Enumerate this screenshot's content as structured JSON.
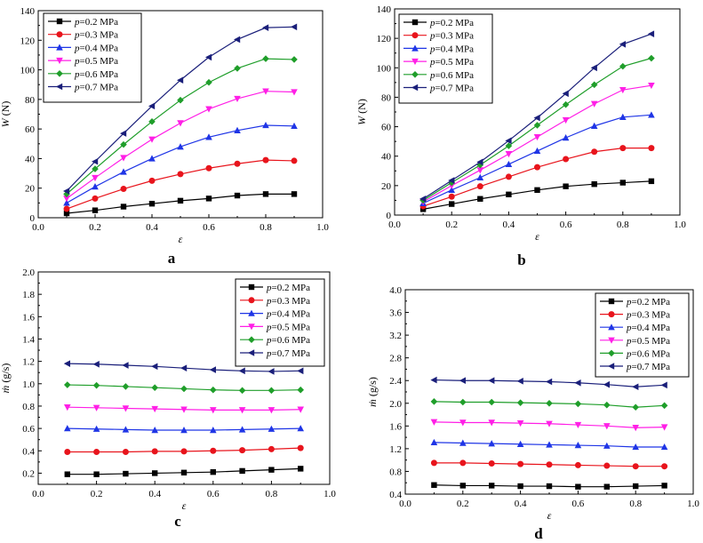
{
  "panels": [
    {
      "label": "a",
      "chart_data": {
        "type": "line",
        "xlabel": "ε",
        "ylabel": "W (N)",
        "ylabel_italic": "W",
        "ylabel_unit": " (N)",
        "xlim": [
          0.0,
          1.0
        ],
        "ylim": [
          0,
          140
        ],
        "x_ticks": [
          "0.0",
          "0.2",
          "0.4",
          "0.6",
          "0.8",
          "1.0"
        ],
        "y_ticks": [
          "0",
          "20",
          "40",
          "60",
          "80",
          "100",
          "120",
          "140"
        ],
        "grid": false,
        "legend_position": "top-left",
        "x": [
          0.1,
          0.2,
          0.3,
          0.4,
          0.5,
          0.6,
          0.7,
          0.8,
          0.9
        ],
        "series": [
          {
            "name": "p=0.2 MPa",
            "legend_symbol": "p",
            "legend_rest": "=0.2 MPa",
            "color": "#000000",
            "marker": "square",
            "values": [
              3,
              5,
              7.5,
              9.5,
              11.5,
              13,
              15,
              16,
              16
            ]
          },
          {
            "name": "p=0.3 MPa",
            "legend_symbol": "p",
            "legend_rest": "=0.3 MPa",
            "color": "#e8141c",
            "marker": "circle",
            "values": [
              6,
              13,
              19.5,
              25,
              29.5,
              33.5,
              36.5,
              39,
              38.5
            ]
          },
          {
            "name": "p=0.4 MPa",
            "legend_symbol": "p",
            "legend_rest": "=0.4 MPa",
            "color": "#1f35e6",
            "marker": "triangle-up",
            "values": [
              10,
              21,
              31,
              40,
              48,
              54.5,
              59,
              62.5,
              62
            ]
          },
          {
            "name": "p=0.5 MPa",
            "legend_symbol": "p",
            "legend_rest": "=0.5 MPa",
            "color": "#ff1fe6",
            "marker": "triangle-down",
            "values": [
              13,
              27,
              40.5,
              53,
              64,
              73.5,
              80.5,
              85.5,
              85
            ]
          },
          {
            "name": "p=0.6 MPa",
            "legend_symbol": "p",
            "legend_rest": "=0.6 MPa",
            "color": "#1f9e2a",
            "marker": "diamond",
            "values": [
              16,
              33,
              49.5,
              65,
              79.5,
              91.5,
              101,
              107.5,
              107
            ]
          },
          {
            "name": "p=0.7 MPa",
            "legend_symbol": "p",
            "legend_rest": "=0.7 MPa",
            "color": "#1a1f7a",
            "marker": "triangle-left",
            "values": [
              18,
              38,
              57,
              75.5,
              93,
              108.5,
              120.5,
              128.5,
              129
            ]
          }
        ]
      }
    },
    {
      "label": "b",
      "chart_data": {
        "type": "line",
        "xlabel": "ε",
        "ylabel": "W (N)",
        "ylabel_italic": "W",
        "ylabel_unit": " (N)",
        "xlim": [
          0.0,
          1.0
        ],
        "ylim": [
          0,
          140
        ],
        "x_ticks": [
          "0.0",
          "0.2",
          "0.4",
          "0.6",
          "0.8",
          "1.0"
        ],
        "y_ticks": [
          "0",
          "20",
          "40",
          "60",
          "80",
          "100",
          "120",
          "140"
        ],
        "grid": false,
        "legend_position": "top-left",
        "x": [
          0.1,
          0.2,
          0.3,
          0.4,
          0.5,
          0.6,
          0.7,
          0.8,
          0.9
        ],
        "series": [
          {
            "name": "p=0.2 MPa",
            "legend_symbol": "p",
            "legend_rest": "=0.2 MPa",
            "color": "#000000",
            "marker": "square",
            "values": [
              4,
              7.5,
              11,
              14,
              17,
              19.5,
              21,
              22,
              23
            ]
          },
          {
            "name": "p=0.3 MPa",
            "legend_symbol": "p",
            "legend_rest": "=0.3 MPa",
            "color": "#e8141c",
            "marker": "circle",
            "values": [
              6,
              12.5,
              19.5,
              26,
              32.5,
              38,
              43,
              45.5,
              45.5
            ]
          },
          {
            "name": "p=0.4 MPa",
            "legend_symbol": "p",
            "legend_rest": "=0.4 MPa",
            "color": "#1f35e6",
            "marker": "triangle-up",
            "values": [
              8,
              17,
              25.5,
              34.5,
              43.5,
              52.5,
              60.5,
              66.5,
              68
            ]
          },
          {
            "name": "p=0.5 MPa",
            "legend_symbol": "p",
            "legend_rest": "=0.5 MPa",
            "color": "#ff1fe6",
            "marker": "triangle-down",
            "values": [
              9,
              20,
              30.5,
              41.5,
              53,
              64.5,
              75.5,
              85,
              88
            ]
          },
          {
            "name": "p=0.6 MPa",
            "legend_symbol": "p",
            "legend_rest": "=0.6 MPa",
            "color": "#1f9e2a",
            "marker": "diamond",
            "values": [
              10,
              22,
              34,
              47,
              61,
              75,
              88.5,
              101,
              106.5
            ]
          },
          {
            "name": "p=0.7 MPa",
            "legend_symbol": "p",
            "legend_rest": "=0.7 MPa",
            "color": "#1a1f7a",
            "marker": "triangle-left",
            "values": [
              11,
              23.5,
              36,
              50.5,
              66,
              82.5,
              100,
              116,
              123
            ]
          }
        ]
      }
    },
    {
      "label": "c",
      "chart_data": {
        "type": "line",
        "xlabel": "ε",
        "ylabel": "ṁ (g/s)",
        "ylabel_italic": "ṁ",
        "ylabel_unit": " (g/s)",
        "xlim": [
          0.0,
          1.0
        ],
        "ylim": [
          0.1,
          2.0
        ],
        "x_ticks": [
          "0.0",
          "0.2",
          "0.4",
          "0.6",
          "0.8",
          "1.0"
        ],
        "y_ticks": [
          "0.2",
          "0.4",
          "0.6",
          "0.8",
          "1.0",
          "1.2",
          "1.4",
          "1.6",
          "1.8",
          "2.0"
        ],
        "grid": false,
        "legend_position": "top-right",
        "x": [
          0.1,
          0.2,
          0.3,
          0.4,
          0.5,
          0.6,
          0.7,
          0.8,
          0.9
        ],
        "series": [
          {
            "name": "p=0.2 MPa",
            "legend_symbol": "p",
            "legend_rest": "=0.2 MPa",
            "color": "#000000",
            "marker": "square",
            "values": [
              0.19,
              0.19,
              0.195,
              0.2,
              0.205,
              0.21,
              0.22,
              0.23,
              0.24
            ]
          },
          {
            "name": "p=0.3 MPa",
            "legend_symbol": "p",
            "legend_rest": "=0.3 MPa",
            "color": "#e8141c",
            "marker": "circle",
            "values": [
              0.39,
              0.39,
              0.39,
              0.395,
              0.395,
              0.4,
              0.405,
              0.415,
              0.425
            ]
          },
          {
            "name": "p=0.4 MPa",
            "legend_symbol": "p",
            "legend_rest": "=0.4 MPa",
            "color": "#1f35e6",
            "marker": "triangle-up",
            "values": [
              0.6,
              0.595,
              0.59,
              0.585,
              0.585,
              0.585,
              0.59,
              0.595,
              0.6
            ]
          },
          {
            "name": "p=0.5 MPa",
            "legend_symbol": "p",
            "legend_rest": "=0.5 MPa",
            "color": "#ff1fe6",
            "marker": "triangle-down",
            "values": [
              0.79,
              0.785,
              0.78,
              0.775,
              0.77,
              0.765,
              0.765,
              0.765,
              0.77
            ]
          },
          {
            "name": "p=0.6 MPa",
            "legend_symbol": "p",
            "legend_rest": "=0.6 MPa",
            "color": "#1f9e2a",
            "marker": "diamond",
            "values": [
              0.99,
              0.985,
              0.975,
              0.965,
              0.955,
              0.945,
              0.94,
              0.94,
              0.945
            ]
          },
          {
            "name": "p=0.7 MPa",
            "legend_symbol": "p",
            "legend_rest": "=0.7 MPa",
            "color": "#1a1f7a",
            "marker": "triangle-left",
            "values": [
              1.18,
              1.175,
              1.165,
              1.155,
              1.14,
              1.125,
              1.115,
              1.11,
              1.115
            ]
          }
        ]
      }
    },
    {
      "label": "d",
      "chart_data": {
        "type": "line",
        "xlabel": "ε",
        "ylabel": "ṁ (g/s)",
        "ylabel_italic": "ṁ",
        "ylabel_unit": " (g/s)",
        "xlim": [
          0.0,
          1.0
        ],
        "ylim": [
          0.4,
          4.0
        ],
        "x_ticks": [
          "0.0",
          "0.2",
          "0.4",
          "0.6",
          "0.8",
          "1.0"
        ],
        "y_ticks": [
          "0.4",
          "0.8",
          "1.2",
          "1.6",
          "2.0",
          "2.4",
          "2.8",
          "3.2",
          "3.6",
          "4.0"
        ],
        "grid": false,
        "legend_position": "top-right",
        "x": [
          0.1,
          0.2,
          0.3,
          0.4,
          0.5,
          0.6,
          0.7,
          0.8,
          0.9
        ],
        "series": [
          {
            "name": "p=0.2 MPa",
            "legend_symbol": "p",
            "legend_rest": "=0.2 MPa",
            "color": "#000000",
            "marker": "square",
            "values": [
              0.56,
              0.55,
              0.55,
              0.54,
              0.54,
              0.53,
              0.53,
              0.54,
              0.55
            ]
          },
          {
            "name": "p=0.3 MPa",
            "legend_symbol": "p",
            "legend_rest": "=0.3 MPa",
            "color": "#e8141c",
            "marker": "circle",
            "values": [
              0.95,
              0.95,
              0.94,
              0.93,
              0.92,
              0.91,
              0.9,
              0.89,
              0.89
            ]
          },
          {
            "name": "p=0.4 MPa",
            "legend_symbol": "p",
            "legend_rest": "=0.4 MPa",
            "color": "#1f35e6",
            "marker": "triangle-up",
            "values": [
              1.31,
              1.3,
              1.29,
              1.28,
              1.27,
              1.26,
              1.25,
              1.23,
              1.23
            ]
          },
          {
            "name": "p=0.5 MPa",
            "legend_symbol": "p",
            "legend_rest": "=0.5 MPa",
            "color": "#ff1fe6",
            "marker": "triangle-down",
            "values": [
              1.67,
              1.66,
              1.66,
              1.65,
              1.64,
              1.62,
              1.6,
              1.57,
              1.58
            ]
          },
          {
            "name": "p=0.6 MPa",
            "legend_symbol": "p",
            "legend_rest": "=0.6 MPa",
            "color": "#1f9e2a",
            "marker": "diamond",
            "values": [
              2.03,
              2.02,
              2.02,
              2.01,
              2.0,
              1.99,
              1.97,
              1.93,
              1.96
            ]
          },
          {
            "name": "p=0.7 MPa",
            "legend_symbol": "p",
            "legend_rest": "=0.7 MPa",
            "color": "#1a1f7a",
            "marker": "triangle-left",
            "values": [
              2.41,
              2.4,
              2.4,
              2.39,
              2.38,
              2.36,
              2.33,
              2.29,
              2.32
            ]
          }
        ]
      }
    }
  ]
}
